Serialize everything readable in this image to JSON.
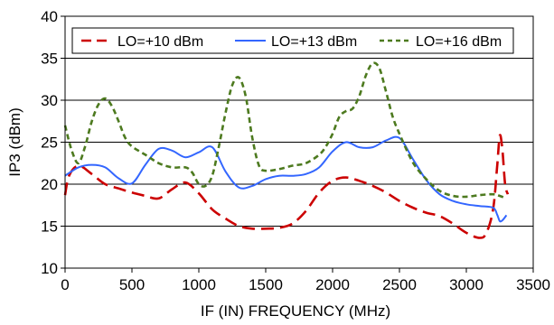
{
  "chart_data": {
    "type": "line",
    "title": "",
    "xlabel": "IF (IN)  FREQUENCY (MHz)",
    "ylabel": "IP3 (dBm)",
    "xlim": [
      0,
      3500
    ],
    "ylim": [
      10,
      40
    ],
    "xticks": [
      0,
      500,
      1000,
      1500,
      2000,
      2500,
      3000,
      3500
    ],
    "yticks": [
      10,
      15,
      20,
      25,
      30,
      35,
      40
    ],
    "grid": "horizontal",
    "legend_position": "top",
    "series": [
      {
        "name": "LO=+10 dBm",
        "color": "#cc0000",
        "dash": "dashed",
        "x": [
          0,
          30,
          100,
          200,
          300,
          400,
          500,
          600,
          700,
          800,
          900,
          1000,
          1100,
          1200,
          1300,
          1400,
          1500,
          1600,
          1700,
          1800,
          1900,
          2000,
          2100,
          2200,
          2300,
          2400,
          2500,
          2600,
          2700,
          2800,
          2900,
          3000,
          3100,
          3150,
          3200,
          3230,
          3250,
          3270,
          3290,
          3310
        ],
        "y": [
          18.7,
          21.0,
          22.2,
          21.2,
          20.0,
          19.5,
          19.0,
          18.6,
          18.3,
          19.4,
          20.2,
          18.9,
          17.0,
          15.9,
          15.0,
          14.7,
          14.7,
          14.8,
          15.3,
          16.8,
          19.0,
          20.4,
          20.8,
          20.4,
          19.8,
          19.0,
          18.0,
          17.2,
          16.6,
          16.2,
          15.3,
          14.2,
          13.6,
          14.2,
          17.0,
          22.0,
          25.8,
          24.0,
          20.0,
          18.8
        ]
      },
      {
        "name": "LO=+13 dBm",
        "color": "#3366ff",
        "dash": "solid",
        "x": [
          0,
          100,
          200,
          300,
          400,
          500,
          600,
          700,
          800,
          900,
          1000,
          1100,
          1200,
          1300,
          1400,
          1500,
          1600,
          1700,
          1800,
          1900,
          2000,
          2100,
          2200,
          2300,
          2400,
          2500,
          2600,
          2700,
          2800,
          2900,
          3000,
          3100,
          3200,
          3230,
          3250,
          3270,
          3300
        ],
        "y": [
          21.0,
          22.0,
          22.3,
          22.0,
          20.7,
          20.1,
          22.3,
          24.2,
          24.0,
          23.2,
          23.8,
          24.4,
          21.5,
          19.6,
          19.8,
          20.6,
          21.0,
          21.0,
          21.2,
          22.0,
          23.9,
          25.0,
          24.4,
          24.4,
          25.2,
          25.5,
          23.0,
          20.5,
          18.8,
          18.0,
          17.6,
          17.4,
          17.2,
          16.4,
          15.6,
          15.7,
          16.3
        ]
      },
      {
        "name": "LO=+16 dBm",
        "color": "#4d7a1f",
        "dash": "dotted",
        "x": [
          0,
          50,
          100,
          150,
          200,
          250,
          300,
          350,
          400,
          450,
          500,
          600,
          700,
          800,
          900,
          950,
          1000,
          1050,
          1100,
          1150,
          1200,
          1250,
          1300,
          1350,
          1400,
          1450,
          1500,
          1600,
          1700,
          1800,
          1900,
          1950,
          2000,
          2050,
          2100,
          2150,
          2200,
          2250,
          2300,
          2350,
          2400,
          2450,
          2500,
          2600,
          2700,
          2800,
          2900,
          3000,
          3100,
          3200,
          3250,
          3300
        ],
        "y": [
          27.0,
          24.0,
          22.5,
          24.5,
          27.5,
          29.5,
          30.2,
          29.3,
          27.5,
          25.5,
          24.5,
          23.5,
          22.5,
          22.0,
          22.0,
          21.4,
          20.0,
          19.8,
          21.0,
          24.5,
          28.5,
          31.8,
          32.7,
          30.5,
          25.5,
          22.2,
          21.6,
          21.8,
          22.2,
          22.5,
          23.5,
          24.5,
          26.0,
          28.0,
          28.7,
          29.0,
          30.5,
          33.0,
          34.4,
          33.8,
          31.0,
          28.0,
          26.0,
          22.6,
          20.6,
          19.2,
          18.6,
          18.5,
          18.7,
          18.8,
          18.6,
          18.3
        ]
      }
    ]
  }
}
